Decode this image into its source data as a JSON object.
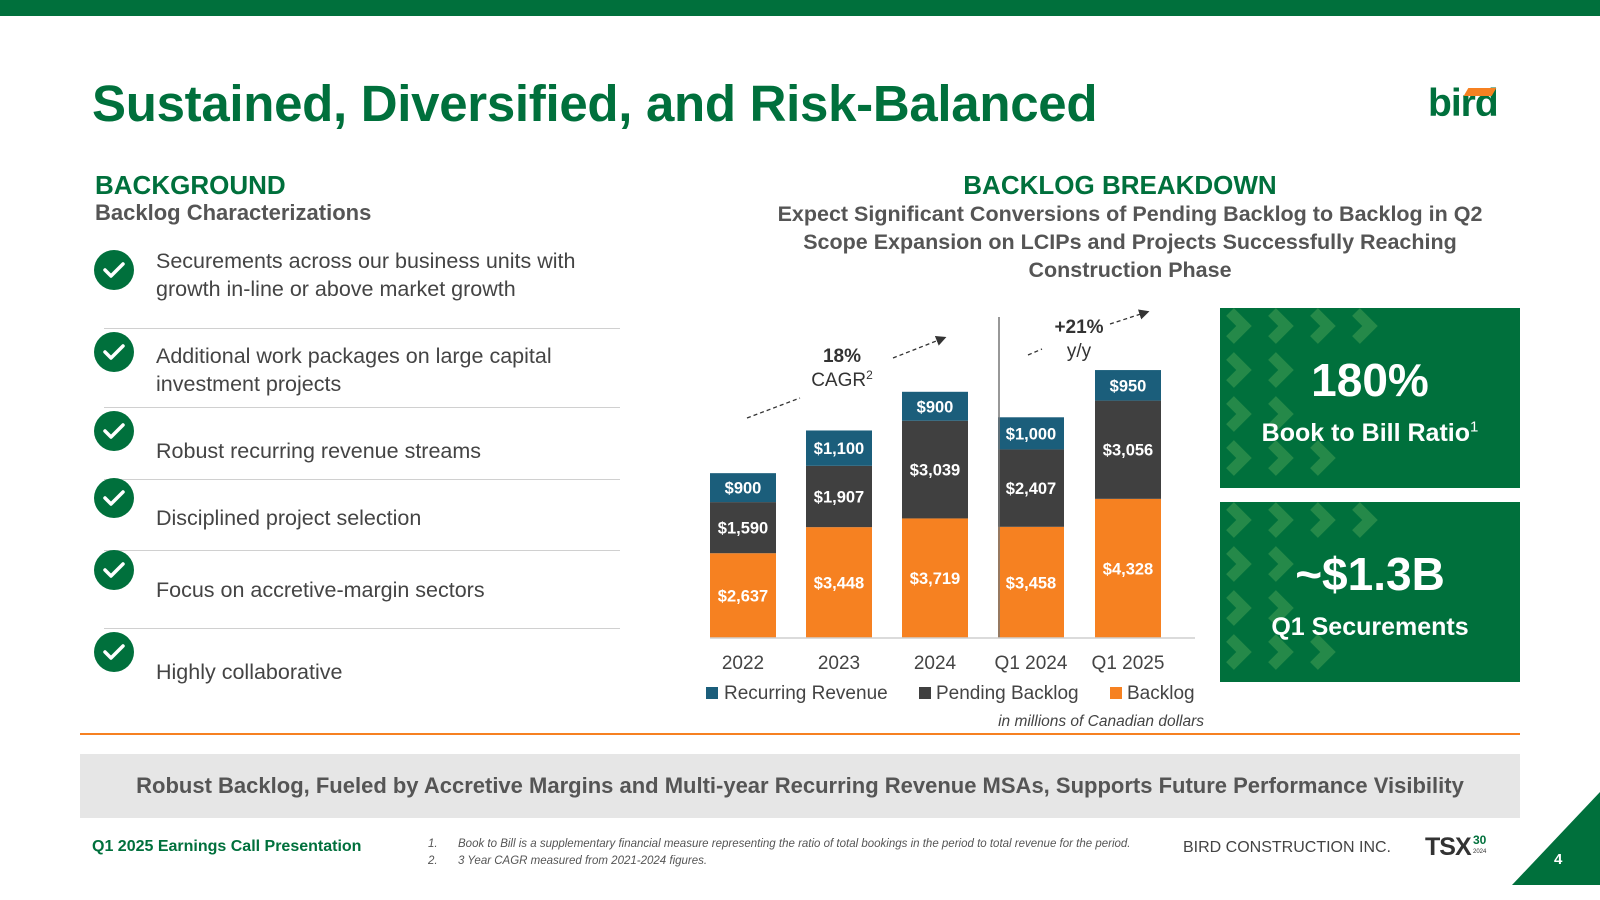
{
  "title": "Sustained, Diversified, and Risk-Balanced",
  "logo": "bird",
  "background": {
    "heading": "BACKGROUND",
    "subheading": "Backlog Characterizations",
    "items": [
      {
        "line1": "Securements across our business units with",
        "line2": "growth in-line or above market growth"
      },
      {
        "line1": "Additional work packages on large capital",
        "line2": "investment projects"
      },
      {
        "line1": "Robust recurring revenue streams",
        "line2": ""
      },
      {
        "line1": "Disciplined project selection",
        "line2": ""
      },
      {
        "line1": "Focus on accretive-margin sectors",
        "line2": ""
      },
      {
        "line1": "Highly collaborative",
        "line2": ""
      }
    ]
  },
  "backlog": {
    "heading": "BACKLOG BREAKDOWN",
    "sub_line1": "Expect Significant Conversions of Pending Backlog to Backlog in Q2",
    "sub_line2": "Scope Expansion on LCIPs and Projects Successfully Reaching",
    "sub_line3": "Construction Phase"
  },
  "chart_data": {
    "type": "bar",
    "stacked": true,
    "categories": [
      "2022",
      "2023",
      "2024",
      "Q1 2024",
      "Q1 2025"
    ],
    "series": [
      {
        "name": "Backlog",
        "color": "#f68121",
        "values": [
          2637,
          3448,
          3719,
          3458,
          4328
        ],
        "labels": [
          "$2,637",
          "$3,448",
          "$3,719",
          "$3,458",
          "$4,328"
        ]
      },
      {
        "name": "Pending Backlog",
        "color": "#404040",
        "values": [
          1590,
          1907,
          3039,
          2407,
          3056
        ],
        "labels": [
          "$1,590",
          "$1,907",
          "$3,039",
          "$2,407",
          "$3,056"
        ]
      },
      {
        "name": "Recurring Revenue",
        "color": "#1b5e7b",
        "values": [
          900,
          1100,
          900,
          1000,
          950
        ],
        "labels": [
          "$900",
          "$1,100",
          "$900",
          "$1,000",
          "$950"
        ]
      }
    ],
    "legend": [
      "Recurring Revenue",
      "Pending Backlog",
      "Backlog"
    ],
    "legend_position": "bottom",
    "annotations": {
      "cagr_value": "18%",
      "cagr_label": "CAGR",
      "cagr_sup": "2",
      "yoy_value": "+21%",
      "yoy_label": "y/y"
    },
    "units_note": "in millions of Canadian dollars"
  },
  "stats": [
    {
      "value": "180%",
      "label": "Book to Bill Ratio",
      "sup": "1"
    },
    {
      "value": "~$1.3B",
      "label": "Q1 Securements",
      "sup": ""
    }
  ],
  "banner": "Robust Backlog, Fueled by Accretive Margins and Multi-year Recurring Revenue MSAs, Supports Future Performance Visibility",
  "footer": {
    "presentation": "Q1 2025 Earnings Call Presentation",
    "footnotes": [
      {
        "num": "1.",
        "text": "Book to Bill is a supplementary financial measure representing the ratio of total bookings in the period to total revenue for the period."
      },
      {
        "num": "2.",
        "text": "3 Year CAGR measured from 2021-2024 figures."
      }
    ],
    "company": "BIRD CONSTRUCTION INC.",
    "tsx": "TSX",
    "tsx_badge": "30",
    "tsx_year": "2024",
    "page": "4"
  },
  "colors": {
    "brand_green": "#00703c",
    "accent_orange": "#f68121",
    "recurring_blue": "#1b5e7b",
    "pending_gray": "#404040"
  }
}
